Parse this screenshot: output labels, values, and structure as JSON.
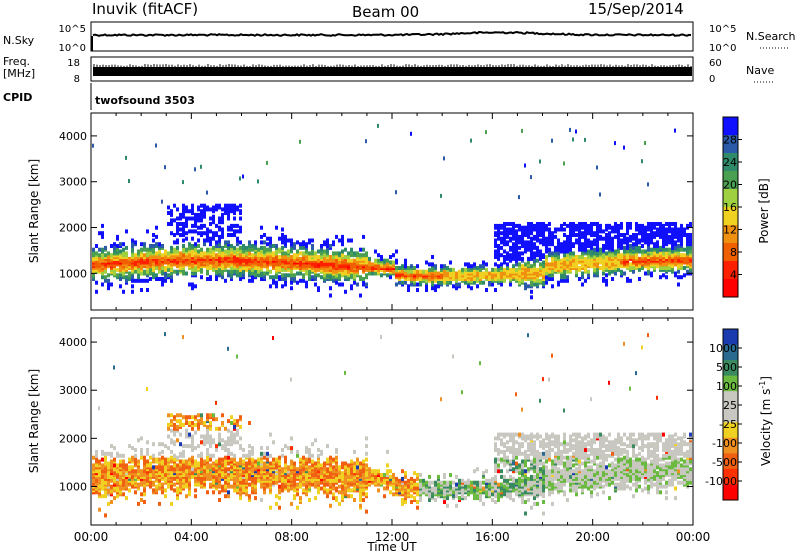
{
  "header": {
    "title": "Inuvik (fitACF)",
    "beam": "Beam 00",
    "date": "15/Sep/2014"
  },
  "top_panels": {
    "nsky": {
      "label": "N.Sky",
      "ticks": [
        "10^5",
        "10^0"
      ]
    },
    "nsearch": {
      "label": "N.Search",
      "ticks": [
        "10^5",
        "10^0"
      ]
    },
    "freq": {
      "label_line1": "Freq.",
      "label_line2": "[MHz]",
      "ticks": [
        "18",
        "8"
      ]
    },
    "nave": {
      "label": "Nave",
      "ticks": [
        "60",
        "0"
      ]
    },
    "cpid": {
      "label": "CPID",
      "value": "twofsound 3503"
    }
  },
  "chart_data": [
    {
      "type": "heatmap",
      "name": "power",
      "ylabel": "Slant Range [km]",
      "y_ticks": [
        1000,
        2000,
        3000,
        4000
      ],
      "ylim": [
        200,
        4500
      ],
      "x_ticks": [
        "00:00",
        "04:00",
        "08:00",
        "12:00",
        "16:00",
        "20:00",
        "00:00"
      ],
      "xlim_hours": [
        0,
        24
      ],
      "colorbar": {
        "label": "Power [dB]",
        "ticks": [
          "4",
          "8",
          "12",
          "16",
          "20",
          "24",
          "28"
        ],
        "colors": [
          "#1010ff",
          "#2a5aa8",
          "#2f8a6a",
          "#4aa050",
          "#9fd040",
          "#f0d020",
          "#f09010",
          "#f06000",
          "#ff2000",
          "#ff0000"
        ]
      }
    },
    {
      "type": "heatmap",
      "name": "velocity",
      "ylabel": "Slant Range [km]",
      "y_ticks": [
        1000,
        2000,
        3000,
        4000
      ],
      "ylim": [
        200,
        4500
      ],
      "x_ticks": [
        "00:00",
        "04:00",
        "08:00",
        "12:00",
        "16:00",
        "20:00",
        "00:00"
      ],
      "xlabel": "Time UT",
      "colorbar": {
        "label_main": "Velocity [m s",
        "label_sup": "-1",
        "label_end": "]",
        "ticks": [
          "1000",
          "500",
          "100",
          "25",
          "-25",
          "-100",
          "-500",
          "-1000"
        ],
        "colors": [
          "#1a3ab0",
          "#2a6a90",
          "#3a8a60",
          "#6aba40",
          "#c8c8c0",
          "#c8c8c0",
          "#f0d020",
          "#f09020",
          "#f06010",
          "#ff3000",
          "#ff0000"
        ]
      }
    }
  ]
}
